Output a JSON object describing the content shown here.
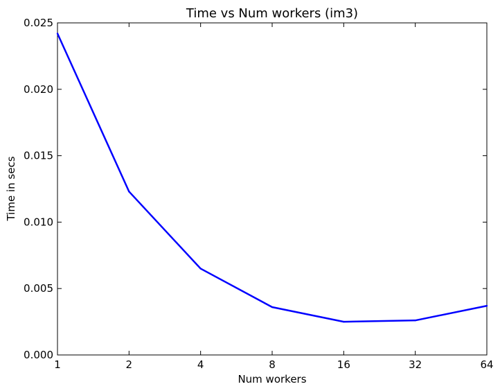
{
  "chart_data": {
    "type": "line",
    "title": "Time vs Num workers (im3)",
    "xlabel": "Num workers",
    "ylabel": "Time in secs",
    "x_scale": "log2",
    "categories": [
      "1",
      "2",
      "4",
      "8",
      "16",
      "32",
      "64"
    ],
    "x": [
      1,
      2,
      4,
      8,
      16,
      32,
      64
    ],
    "y_ticks": [
      "0.000",
      "0.005",
      "0.010",
      "0.015",
      "0.020",
      "0.025"
    ],
    "ylim": [
      0,
      0.025
    ],
    "grid": false,
    "series": [
      {
        "values": [
          0.0242,
          0.0123,
          0.0065,
          0.0036,
          0.0025,
          0.0026,
          0.0037
        ],
        "color": "#0000ff"
      }
    ]
  }
}
